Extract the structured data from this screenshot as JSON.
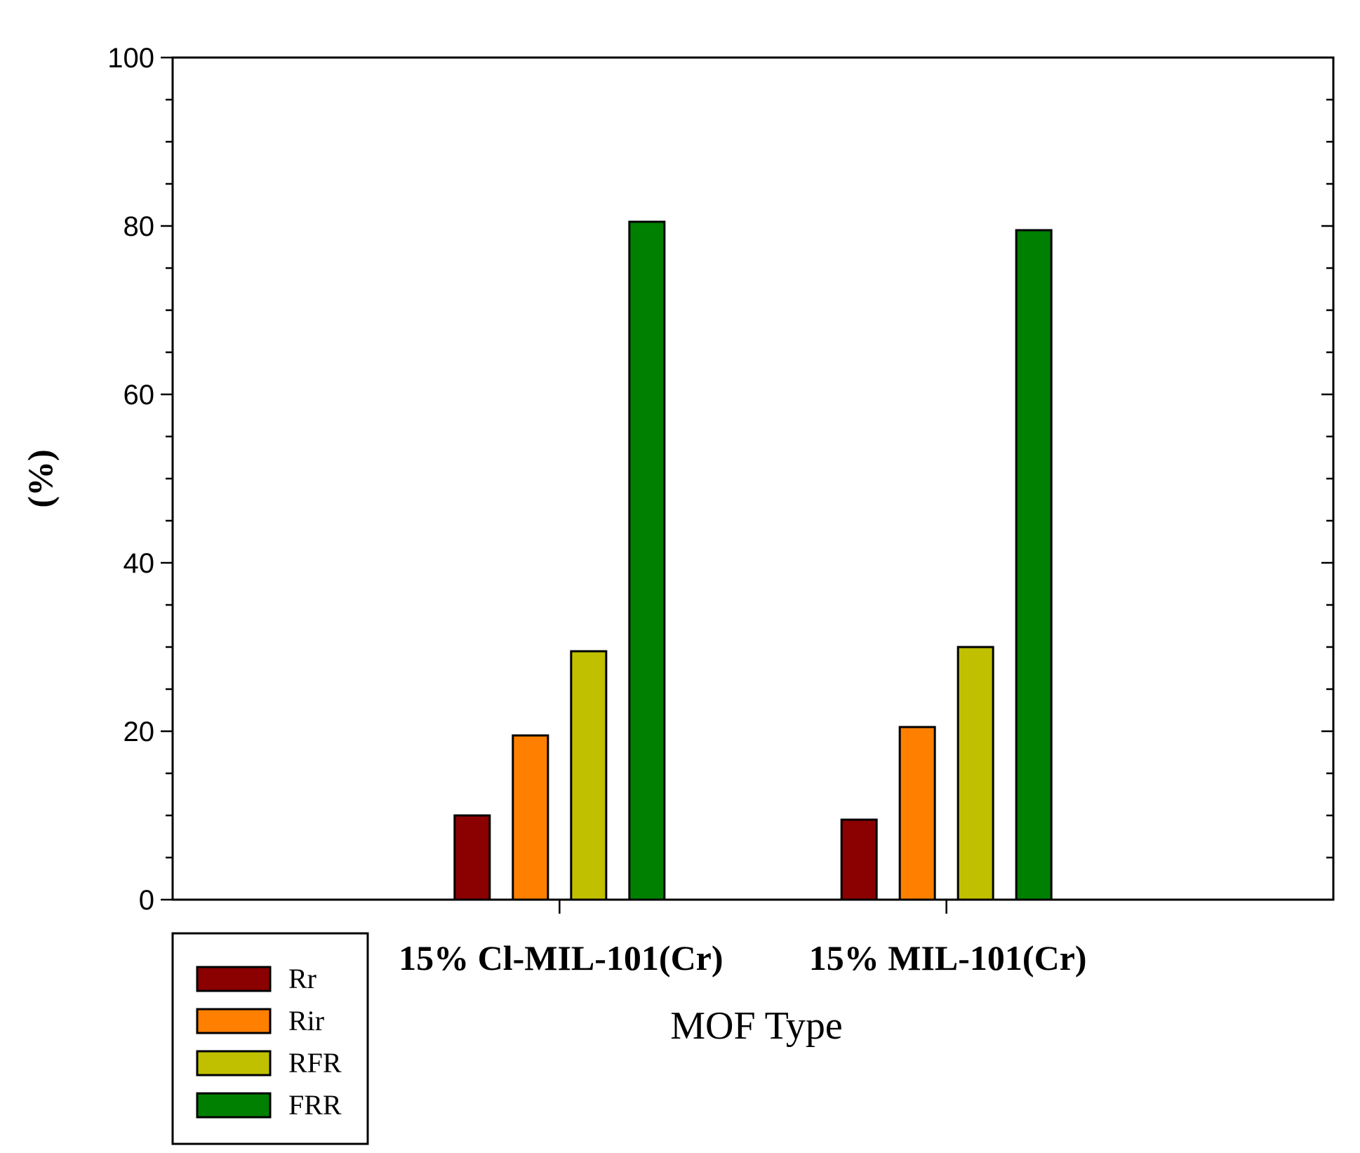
{
  "chart_data": {
    "type": "bar",
    "title": "",
    "xlabel": "MOF Type",
    "ylabel": "(%)",
    "ylim": [
      0,
      100
    ],
    "y_ticks": [
      0,
      20,
      40,
      60,
      80,
      100
    ],
    "y_tick_labels": [
      "0",
      "20",
      "40",
      "60",
      "80",
      "100"
    ],
    "grid": false,
    "legend_position": "bottom-left",
    "categories": [
      "15% Cl-MIL-101(Cr)",
      "15% MIL-101(Cr)"
    ],
    "series": [
      {
        "name": "Rr",
        "color": "#8b0000",
        "values": [
          10,
          9.5
        ]
      },
      {
        "name": "Rir",
        "color": "#ff8000",
        "values": [
          19.5,
          20.5
        ]
      },
      {
        "name": "RFR",
        "color": "#c0c000",
        "values": [
          29.5,
          30
        ]
      },
      {
        "name": "FRR",
        "color": "#008000",
        "values": [
          80.5,
          79.5
        ]
      }
    ]
  }
}
